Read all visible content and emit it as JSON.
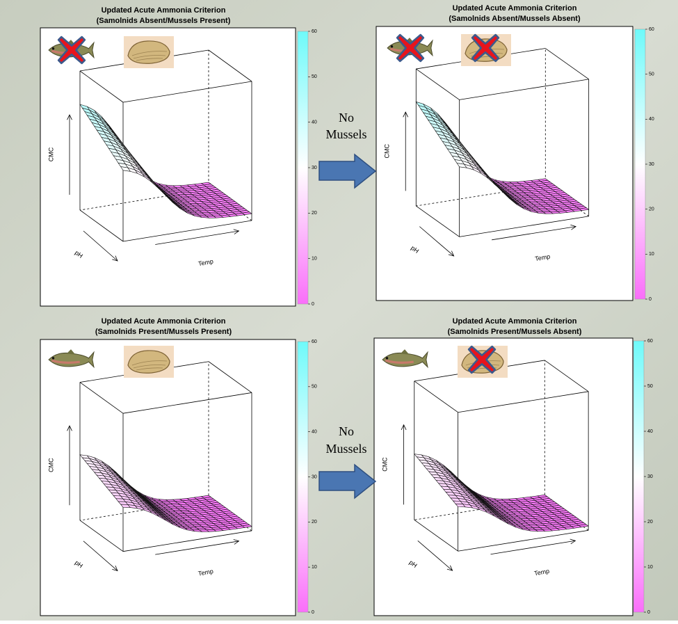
{
  "chart_data": [
    {
      "type": "surface",
      "title": "Updated Acute Ammonia Criterion",
      "subtitle": "(Samolnids Absent/Mussels Present)",
      "zlabel": "CMC",
      "xlabel": "pH",
      "ylabel": "Temp",
      "zlim": [
        0,
        60
      ],
      "zticks": [
        0,
        10,
        20,
        30,
        40,
        50,
        60
      ]
    },
    {
      "type": "surface",
      "title": "Updated Acute Ammonia Criterion",
      "subtitle": "(Samolnids Absent/Mussels Absent)",
      "zlabel": "CMC",
      "xlabel": "pH",
      "ylabel": "Temp",
      "zlim": [
        0,
        60
      ],
      "zticks": [
        0,
        10,
        20,
        30,
        40,
        50,
        60
      ]
    },
    {
      "type": "surface",
      "title": "Updated Acute Ammonia Criterion",
      "subtitle": "(Samolnids Present/Mussels Present)",
      "zlabel": "CMC",
      "xlabel": "pH",
      "ylabel": "Temp",
      "zlim": [
        0,
        60
      ],
      "zticks": [
        0,
        10,
        20,
        30,
        40,
        50,
        60
      ]
    },
    {
      "type": "surface",
      "title": "Updated Acute Ammonia Criterion",
      "subtitle": "(Samolnids Present/Mussels Absent)",
      "zlabel": "CMC",
      "xlabel": "pH",
      "ylabel": "Temp",
      "zlim": [
        0,
        60
      ],
      "zticks": [
        0,
        10,
        20,
        30,
        40,
        50,
        60
      ]
    }
  ],
  "annotations": [
    {
      "lines": [
        "No",
        "Mussels"
      ]
    },
    {
      "lines": [
        "No",
        "Mussels"
      ]
    }
  ]
}
